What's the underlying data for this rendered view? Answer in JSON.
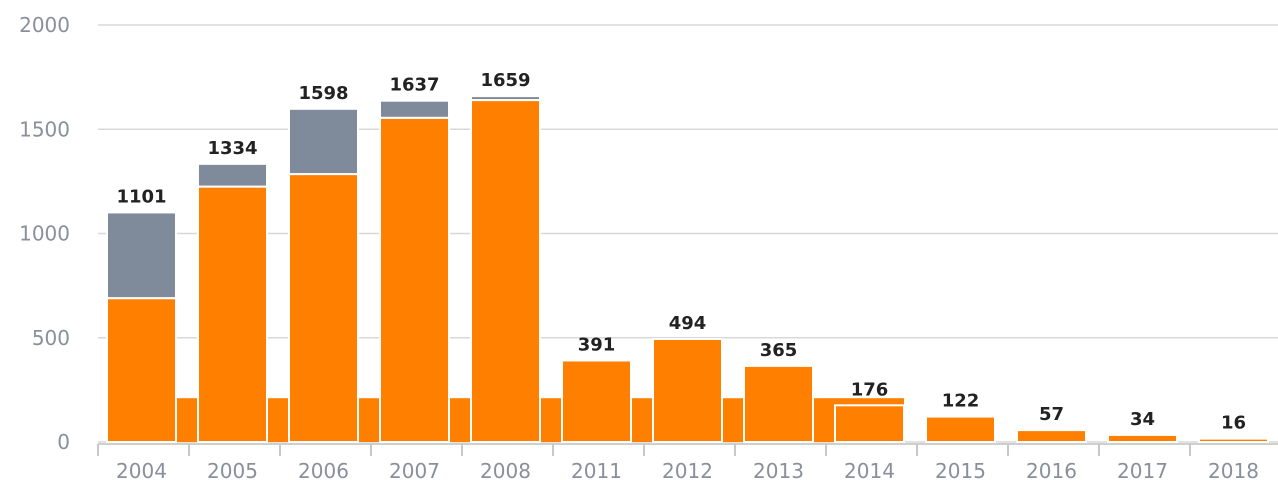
{
  "chart_data": {
    "type": "bar",
    "stacked": true,
    "title": "",
    "xlabel": "",
    "ylabel": "",
    "ylim": [
      0,
      2000
    ],
    "yticks": [
      0,
      500,
      1000,
      1500,
      2000
    ],
    "grid": true,
    "legend": "none",
    "categories": [
      "2004",
      "2005",
      "2006",
      "2007",
      "2008",
      "2011",
      "2012",
      "2013",
      "2014",
      "2015",
      "2016",
      "2017",
      "2018"
    ],
    "totals": [
      1101,
      1334,
      1598,
      1637,
      1659,
      391,
      494,
      365,
      176,
      122,
      57,
      34,
      16
    ],
    "series": [
      {
        "values": [
          690,
          1225,
          1285,
          1555,
          1640,
          391,
          494,
          365,
          176,
          122,
          57,
          34,
          16
        ],
        "color": "#ff8000"
      },
      {
        "values": [
          411,
          109,
          313,
          82,
          19,
          0,
          0,
          0,
          0,
          0,
          0,
          0,
          0
        ],
        "color": "#7f8a9b"
      }
    ],
    "band": {
      "value": 210,
      "from_category": "2004",
      "to_category": "2014",
      "color": "#ff8000"
    }
  }
}
